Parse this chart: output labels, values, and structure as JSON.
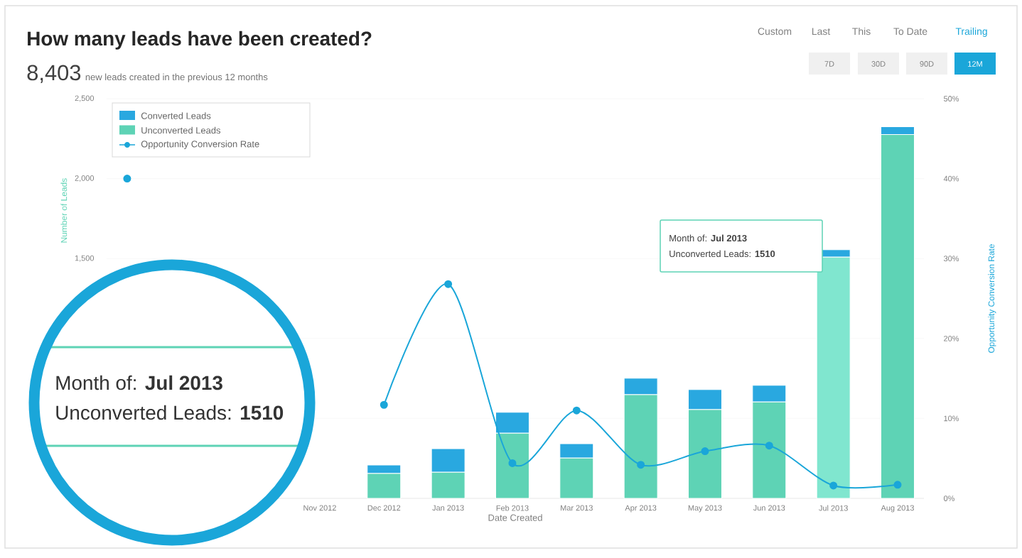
{
  "chart_data": {
    "type": "bar",
    "title": "How many leads have been created?",
    "subtitle": "new leads created in the previous 12 months",
    "categories": [
      null,
      null,
      null,
      "Nov 2012",
      "Dec 2012",
      "Jan 2013",
      "Feb 2013",
      "Mar 2013",
      "Apr 2013",
      "May 2013",
      "Jun 2013",
      "Jul 2013",
      "Aug 2013"
    ],
    "series": [
      {
        "name": "Unconverted Leads",
        "color": "#5ed3b5",
        "colors": [
          "#5ed3b5",
          "#5ed3b5",
          "#5ed3b5",
          "#5ed3b5",
          "#5ed3b5",
          "#5ed3b5",
          "#5ed3b5",
          "#5ed3b5",
          "#5ed3b5",
          "#5ed3b5",
          "#5ed3b5",
          "#80e6cf",
          "#5ed3b5"
        ],
        "values": [
          null,
          null,
          null,
          null,
          156,
          164,
          409,
          253,
          649,
          556,
          604,
          1510,
          2276
        ]
      },
      {
        "name": "Converted Leads",
        "color": "#29a8e0",
        "values": [
          null,
          null,
          null,
          null,
          53,
          147,
          129,
          89,
          102,
          124,
          103,
          45,
          48
        ]
      },
      {
        "name": "Opportunity Conversion Rate",
        "type": "line",
        "axis": "y2",
        "color": "#1aa6d9",
        "values": [
          40,
          null,
          null,
          null,
          11.7,
          26.8,
          4.4,
          11.0,
          4.2,
          5.9,
          6.6,
          1.6,
          1.7
        ]
      }
    ],
    "stacked": true,
    "xlabel": "Date Created",
    "ylabel": "Number of Leads",
    "y2label": "Opportunity Conversion Rate",
    "ylim": [
      0,
      2500
    ],
    "yticks": [
      {
        "value": 0,
        "label": null
      },
      {
        "value": 500,
        "label": null
      },
      {
        "value": 1000,
        "label": null
      },
      {
        "value": 1500,
        "label": "1,500"
      },
      {
        "value": 2000,
        "label": "2,000"
      },
      {
        "value": 2500,
        "label": "2,500"
      }
    ],
    "y2lim": [
      0,
      50
    ],
    "y2ticks": [
      {
        "value": 0,
        "label": "0%"
      },
      {
        "value": 10,
        "label": "10%"
      },
      {
        "value": 20,
        "label": "20%"
      },
      {
        "value": 30,
        "label": "30%"
      },
      {
        "value": 40,
        "label": "40%"
      },
      {
        "value": 50,
        "label": "50%"
      }
    ],
    "grid": "y",
    "legend": "top left",
    "marker": "circle",
    "line_style": "solid",
    "annotations": [
      "8,403",
      "Month of: **Jul 2013**",
      "Unconverted Leads: **1510**",
      "Custom",
      "Last",
      "This",
      "To Date",
      "Trailing",
      "7D",
      "30D",
      "90D",
      "12M"
    ]
  }
}
